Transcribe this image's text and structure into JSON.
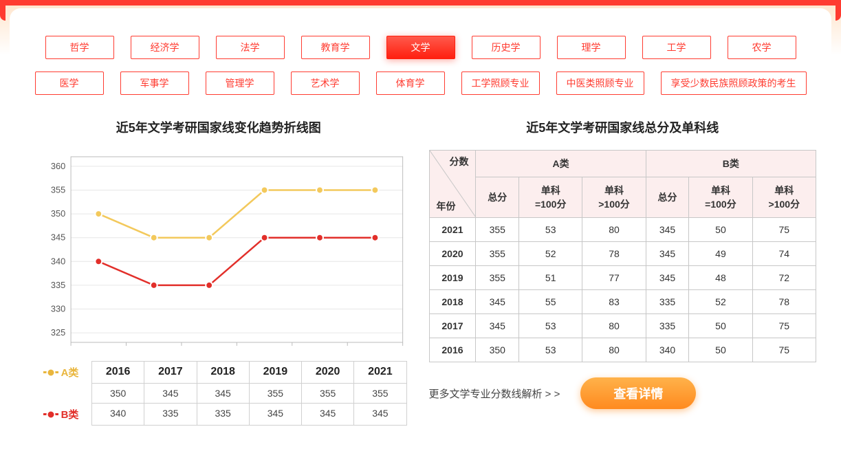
{
  "tabs": {
    "row1": [
      "哲学",
      "经济学",
      "法学",
      "教育学",
      "文学",
      "历史学",
      "理学",
      "工学",
      "农学"
    ],
    "row2": [
      "医学",
      "军事学",
      "管理学",
      "艺术学",
      "体育学",
      "工学照顾专业",
      "中医类照顾专业",
      "享受少数民族照顾政策的考生"
    ],
    "active": "文学"
  },
  "chart": {
    "title": "近5年文学考研国家线变化趋势折线图",
    "years": [
      "2016",
      "2017",
      "2018",
      "2019",
      "2020",
      "2021"
    ],
    "y_ticks": [
      325,
      330,
      335,
      340,
      345,
      350,
      355,
      360
    ],
    "ylim": [
      323,
      362
    ],
    "series": {
      "A": {
        "label": "A类",
        "color": "#f3c95c",
        "values": [
          350,
          345,
          345,
          355,
          355,
          355
        ]
      },
      "B": {
        "label": "B类",
        "color": "#e22f2a",
        "values": [
          340,
          335,
          335,
          345,
          345,
          345
        ]
      }
    },
    "grid_color": "#e6e6e6",
    "axis_color": "#bbbbbb"
  },
  "table": {
    "title": "近5年文学考研国家线总分及单科线",
    "diag_top": "分数",
    "diag_bottom": "年份",
    "group_a": "A类",
    "group_b": "B类",
    "sub_headers": [
      "总分",
      "单科\n=100分",
      "单科\n>100分"
    ],
    "rows": [
      {
        "year": "2021",
        "a": [
          355,
          53,
          80
        ],
        "b": [
          345,
          50,
          75
        ]
      },
      {
        "year": "2020",
        "a": [
          355,
          52,
          78
        ],
        "b": [
          345,
          49,
          74
        ]
      },
      {
        "year": "2019",
        "a": [
          355,
          51,
          77
        ],
        "b": [
          345,
          48,
          72
        ]
      },
      {
        "year": "2018",
        "a": [
          345,
          55,
          83
        ],
        "b": [
          335,
          52,
          78
        ]
      },
      {
        "year": "2017",
        "a": [
          345,
          53,
          80
        ],
        "b": [
          335,
          50,
          75
        ]
      },
      {
        "year": "2016",
        "a": [
          350,
          53,
          80
        ],
        "b": [
          340,
          50,
          75
        ]
      }
    ]
  },
  "more": {
    "text": "更多文学专业分数线解析 > >",
    "button": "查看详情"
  }
}
